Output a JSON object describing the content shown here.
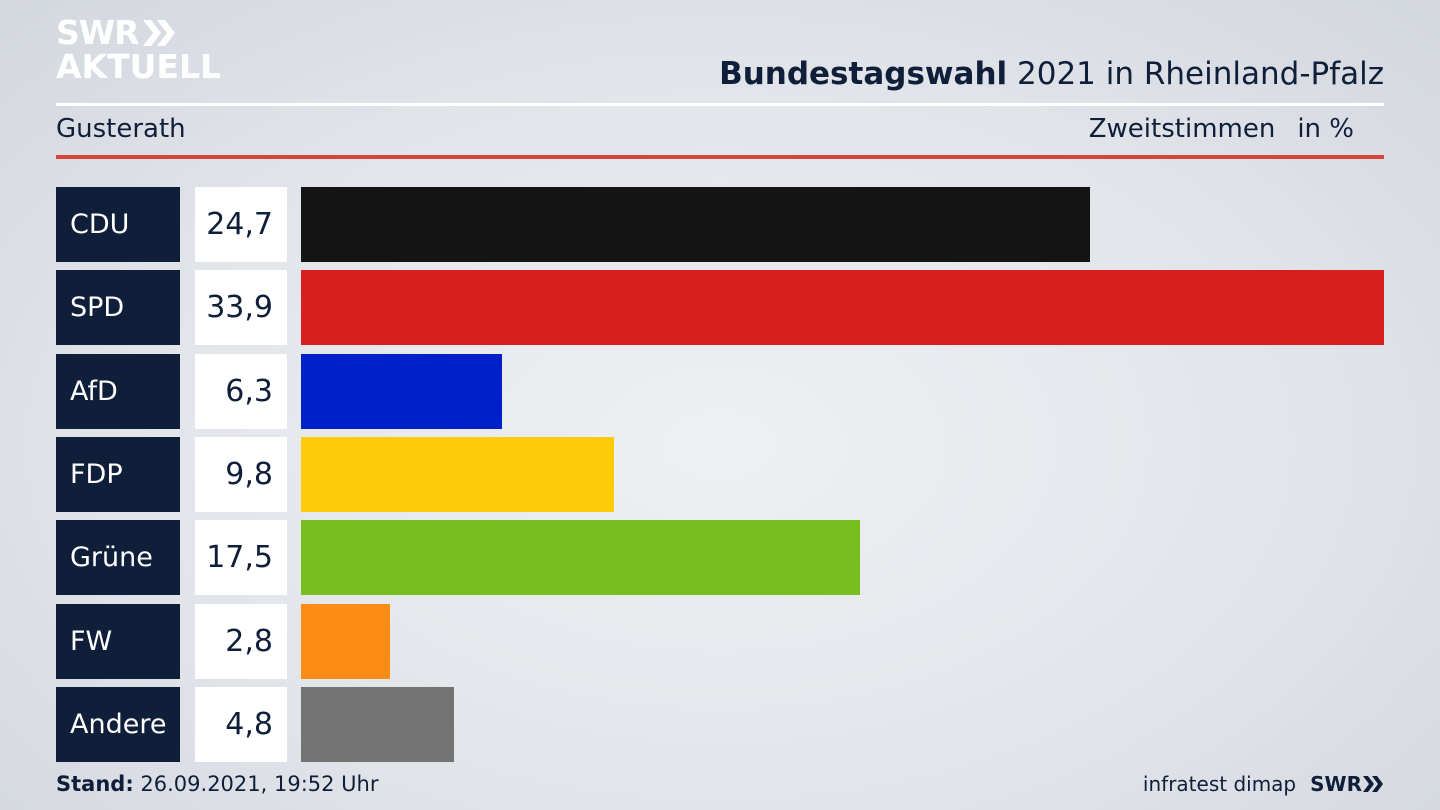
{
  "logo": {
    "line1": "SWR",
    "line2": "AKTUELL"
  },
  "header": {
    "title_bold": "Bundestagswahl",
    "title_rest": " 2021 in Rheinland-Pfalz",
    "location": "Gusterath",
    "measure": "Zweitstimmen",
    "unit": "in %"
  },
  "chart_data": {
    "type": "bar",
    "orientation": "horizontal",
    "categories": [
      "CDU",
      "SPD",
      "AfD",
      "FDP",
      "Grüne",
      "FW",
      "Andere"
    ],
    "values": [
      24.7,
      33.9,
      6.3,
      9.8,
      17.5,
      2.8,
      4.8
    ],
    "value_labels": [
      "24,7",
      "33,9",
      "6,3",
      "9,8",
      "17,5",
      "2,8",
      "4,8"
    ],
    "colors": [
      "#141414",
      "#d71f20",
      "#0020c9",
      "#fdcb0a",
      "#78be1e",
      "#fb8c15",
      "#737373"
    ],
    "title": "Bundestagswahl 2021 in Rheinland-Pfalz",
    "xlabel": "",
    "ylabel": "",
    "xlim": [
      0,
      33.9
    ]
  },
  "footer": {
    "stand_label": "Stand:",
    "stand_value": " 26.09.2021, 19:52 Uhr",
    "source": "infratest dimap",
    "brand": "SWR"
  }
}
